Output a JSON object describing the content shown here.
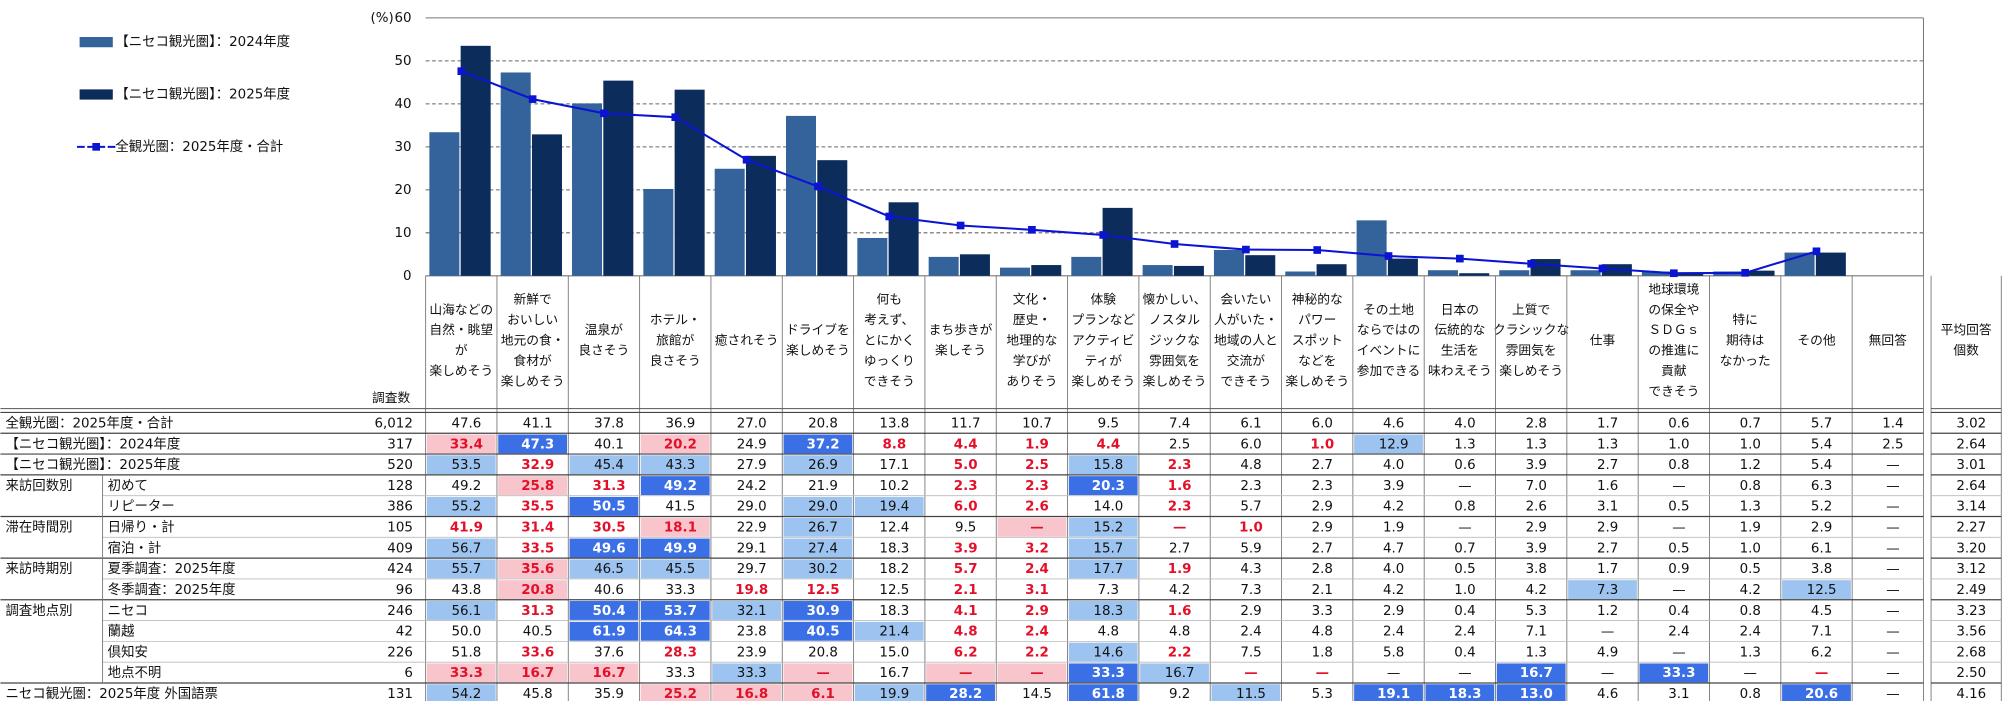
{
  "chart_data": {
    "type": "bar",
    "ylabel": "(%)",
    "ylim": [
      0,
      60
    ],
    "yticks": [
      0,
      10,
      20,
      30,
      40,
      50,
      60
    ],
    "grid": true,
    "categories": [
      [
        "山海などの",
        "自然・眺望",
        "が",
        "楽しめそう"
      ],
      [
        "新鮮で",
        "おいしい",
        "地元の食・",
        "食材が",
        "楽しめそう"
      ],
      [
        "温泉が",
        "良さそう"
      ],
      [
        "ホテル・",
        "旅館が",
        "良さそう"
      ],
      [
        "癒されそう"
      ],
      [
        "ドライブを",
        "楽しめそう"
      ],
      [
        "何も",
        "考えず、",
        "とにかく",
        "ゆっくり",
        "できそう"
      ],
      [
        "まち歩きが",
        "楽しそう"
      ],
      [
        "文化・",
        "歴史・",
        "地理的な",
        "学びが",
        "ありそう"
      ],
      [
        "体験",
        "プランなど",
        "アクティビ",
        "ティが",
        "楽しめそう"
      ],
      [
        "懐かしい、",
        "ノスタル",
        "ジックな",
        "雰囲気を",
        "楽しめそう"
      ],
      [
        "会いたい",
        "人がいた・",
        "地域の人と",
        "交流が",
        "できそう"
      ],
      [
        "神秘的な",
        "パワー",
        "スポット",
        "などを",
        "楽しめそう"
      ],
      [
        "その土地",
        "ならではの",
        "イベントに",
        "参加できる"
      ],
      [
        "日本の",
        "伝統的な",
        "生活を",
        "味わえそう"
      ],
      [
        "上質で",
        "クラシックな",
        "雰囲気を",
        "楽しめそう"
      ],
      [
        "仕事"
      ],
      [
        "地球環境",
        "の保全や",
        "ＳＤＧｓ",
        "の推進に",
        "貢献",
        "できそう"
      ],
      [
        "特に",
        "期待は",
        "なかった"
      ],
      [
        "その他"
      ]
    ],
    "series": [
      {
        "name": "【ニセコ観光圏】：2024年度",
        "color": "#33639a",
        "kind": "bar",
        "values": [
          33.4,
          47.3,
          40.1,
          20.2,
          24.9,
          37.2,
          8.8,
          4.4,
          1.9,
          4.4,
          2.5,
          6.0,
          1.0,
          12.9,
          1.3,
          1.3,
          1.3,
          1.0,
          1.0,
          5.4
        ]
      },
      {
        "name": "【ニセコ観光圏】：2025年度",
        "color": "#0c2d5c",
        "kind": "bar",
        "values": [
          53.5,
          32.9,
          45.4,
          43.3,
          27.9,
          26.9,
          17.1,
          5.0,
          2.5,
          15.8,
          2.3,
          4.8,
          2.7,
          4.0,
          0.6,
          3.9,
          2.7,
          0.8,
          1.2,
          5.4
        ]
      },
      {
        "name": "全観光圏：2025年度・合計",
        "color": "#0a14d2",
        "kind": "line",
        "values": [
          47.6,
          41.1,
          37.8,
          36.9,
          27.0,
          20.8,
          13.8,
          11.7,
          10.7,
          9.5,
          7.4,
          6.1,
          6.0,
          4.6,
          4.0,
          2.8,
          1.7,
          0.6,
          0.7,
          5.7
        ]
      }
    ]
  },
  "table": {
    "count_header": "調査数",
    "extra_columns": [
      [
        "無回答"
      ],
      [
        "平均回答",
        "個数"
      ]
    ],
    "rows": [
      {
        "label": "全観光圏：2025年度・合計",
        "n": "6,012",
        "cells": [
          "47.6",
          "41.1",
          "37.8",
          "36.9",
          "27.0",
          "20.8",
          "13.8",
          "11.7",
          "10.7",
          "9.5",
          "7.4",
          "6.1",
          "6.0",
          "4.6",
          "4.0",
          "2.8",
          "1.7",
          "0.6",
          "0.7",
          "5.7",
          "1.4",
          "3.02"
        ]
      },
      {
        "label": "【ニセコ観光圏】：2024年度",
        "n": "317",
        "cells": [
          "33.4",
          "47.3",
          "40.1",
          "20.2",
          "24.9",
          "37.2",
          "8.8",
          "4.4",
          "1.9",
          "4.4",
          "2.5",
          "6.0",
          "1.0",
          "12.9",
          "1.3",
          "1.3",
          "1.3",
          "1.0",
          "1.0",
          "5.4",
          "2.5",
          "2.64"
        ],
        "highlights": {
          "0": "low-strong",
          "1": "high-strong",
          "3": "low-strong",
          "5": "high-strong",
          "6": "low",
          "7": "low",
          "8": "low",
          "9": "low",
          "12": "low",
          "13": "high"
        }
      },
      {
        "label": "【ニセコ観光圏】：2025年度",
        "n": "520",
        "cells": [
          "53.5",
          "32.9",
          "45.4",
          "43.3",
          "27.9",
          "26.9",
          "17.1",
          "5.0",
          "2.5",
          "15.8",
          "2.3",
          "4.8",
          "2.7",
          "4.0",
          "0.6",
          "3.9",
          "2.7",
          "0.8",
          "1.2",
          "5.4",
          "—",
          "3.01"
        ],
        "highlights": {
          "0": "high",
          "1": "low",
          "2": "high",
          "3": "high",
          "5": "high",
          "7": "low",
          "8": "low",
          "9": "high",
          "10": "low"
        }
      },
      {
        "group": "来訪回数別",
        "sublabel": "初めて",
        "n": "128",
        "cells": [
          "49.2",
          "25.8",
          "31.3",
          "49.2",
          "24.2",
          "21.9",
          "10.2",
          "2.3",
          "2.3",
          "20.3",
          "1.6",
          "2.3",
          "2.3",
          "3.9",
          "—",
          "7.0",
          "1.6",
          "—",
          "0.8",
          "6.3",
          "—",
          "2.64"
        ],
        "highlights": {
          "1": "low-strong",
          "2": "low",
          "3": "high-strong",
          "7": "low",
          "8": "low",
          "9": "high-strong",
          "10": "low"
        }
      },
      {
        "sublabel": "リピーター",
        "n": "386",
        "cells": [
          "55.2",
          "35.5",
          "50.5",
          "41.5",
          "29.0",
          "29.0",
          "19.4",
          "6.0",
          "2.6",
          "14.0",
          "2.3",
          "5.7",
          "2.9",
          "4.2",
          "0.8",
          "2.6",
          "3.1",
          "0.5",
          "1.3",
          "5.2",
          "—",
          "3.14"
        ],
        "highlights": {
          "0": "high",
          "1": "low",
          "2": "high-strong",
          "5": "high",
          "6": "high",
          "7": "low",
          "8": "low",
          "10": "low"
        }
      },
      {
        "group": "滞在時間別",
        "sublabel": "日帰り・計",
        "n": "105",
        "cells": [
          "41.9",
          "31.4",
          "30.5",
          "18.1",
          "22.9",
          "26.7",
          "12.4",
          "9.5",
          "—",
          "15.2",
          "—",
          "1.0",
          "2.9",
          "1.9",
          "—",
          "2.9",
          "2.9",
          "—",
          "1.9",
          "2.9",
          "—",
          "2.27"
        ],
        "highlights": {
          "0": "low",
          "1": "low",
          "2": "low",
          "3": "low-strong",
          "5": "high",
          "8": "low-strong",
          "9": "high",
          "10": "low",
          "11": "low"
        }
      },
      {
        "sublabel": "宿泊・計",
        "n": "409",
        "cells": [
          "56.7",
          "33.5",
          "49.6",
          "49.9",
          "29.1",
          "27.4",
          "18.3",
          "3.9",
          "3.2",
          "15.7",
          "2.7",
          "5.9",
          "2.7",
          "4.7",
          "0.7",
          "3.9",
          "2.7",
          "0.5",
          "1.0",
          "6.1",
          "—",
          "3.20"
        ],
        "highlights": {
          "0": "high",
          "1": "low",
          "2": "high-strong",
          "3": "high-strong",
          "5": "high",
          "7": "low",
          "8": "low",
          "9": "high"
        }
      },
      {
        "group": "来訪時期別",
        "sublabel": "夏季調査：2025年度",
        "n": "424",
        "cells": [
          "55.7",
          "35.6",
          "46.5",
          "45.5",
          "29.7",
          "30.2",
          "18.2",
          "5.7",
          "2.4",
          "17.7",
          "1.9",
          "4.3",
          "2.8",
          "4.0",
          "0.5",
          "3.8",
          "1.7",
          "0.9",
          "0.5",
          "3.8",
          "—",
          "3.12"
        ],
        "highlights": {
          "0": "high",
          "1": "low-strong",
          "2": "high",
          "3": "high",
          "5": "high",
          "7": "low",
          "8": "low",
          "9": "high",
          "10": "low"
        }
      },
      {
        "sublabel": "冬季調査：2025年度",
        "n": "96",
        "cells": [
          "43.8",
          "20.8",
          "40.6",
          "33.3",
          "19.8",
          "12.5",
          "12.5",
          "2.1",
          "3.1",
          "7.3",
          "4.2",
          "7.3",
          "2.1",
          "4.2",
          "1.0",
          "4.2",
          "7.3",
          "—",
          "4.2",
          "12.5",
          "—",
          "2.49"
        ],
        "highlights": {
          "1": "low-strong",
          "4": "low",
          "5": "low",
          "7": "low",
          "8": "low",
          "16": "high",
          "19": "high"
        }
      },
      {
        "group": "調査地点別",
        "sublabel": "ニセコ",
        "n": "246",
        "cells": [
          "56.1",
          "31.3",
          "50.4",
          "53.7",
          "32.1",
          "30.9",
          "18.3",
          "4.1",
          "2.9",
          "18.3",
          "1.6",
          "2.9",
          "3.3",
          "2.9",
          "0.4",
          "5.3",
          "1.2",
          "0.4",
          "0.8",
          "4.5",
          "—",
          "3.23"
        ],
        "highlights": {
          "0": "high",
          "1": "low",
          "2": "high-strong",
          "3": "high-strong",
          "4": "high",
          "5": "high-strong",
          "7": "low",
          "8": "low",
          "9": "high",
          "10": "low"
        }
      },
      {
        "sublabel": "蘭越",
        "n": "42",
        "cells": [
          "50.0",
          "40.5",
          "61.9",
          "64.3",
          "23.8",
          "40.5",
          "21.4",
          "4.8",
          "2.4",
          "4.8",
          "4.8",
          "2.4",
          "4.8",
          "2.4",
          "2.4",
          "7.1",
          "—",
          "2.4",
          "2.4",
          "7.1",
          "—",
          "3.56"
        ],
        "highlights": {
          "2": "high-strong",
          "3": "high-strong",
          "5": "high-strong",
          "6": "high",
          "7": "low",
          "8": "low"
        }
      },
      {
        "sublabel": "倶知安",
        "n": "226",
        "cells": [
          "51.8",
          "33.6",
          "37.6",
          "28.3",
          "23.9",
          "20.8",
          "15.0",
          "6.2",
          "2.2",
          "14.6",
          "2.2",
          "7.5",
          "1.8",
          "5.8",
          "0.4",
          "1.3",
          "4.9",
          "—",
          "1.3",
          "6.2",
          "—",
          "2.68"
        ],
        "highlights": {
          "1": "low",
          "3": "low",
          "7": "low",
          "8": "low",
          "9": "high",
          "10": "low"
        }
      },
      {
        "sublabel": "地点不明",
        "n": "6",
        "cells": [
          "33.3",
          "16.7",
          "16.7",
          "33.3",
          "33.3",
          "—",
          "16.7",
          "—",
          "—",
          "33.3",
          "16.7",
          "—",
          "—",
          "—",
          "—",
          "16.7",
          "—",
          "33.3",
          "—",
          "—",
          "—",
          "2.50"
        ],
        "highlights": {
          "0": "low-strong",
          "1": "low-strong",
          "2": "low-strong",
          "4": "high",
          "5": "low-strong",
          "7": "low-strong",
          "8": "low-strong",
          "9": "high-strong",
          "10": "high",
          "11": "low",
          "12": "low",
          "15": "high-strong",
          "17": "high-strong",
          "19": "low"
        }
      },
      {
        "label": "ニセコ観光圏：2025年度 外国語票",
        "n": "131",
        "cells": [
          "54.2",
          "45.8",
          "35.9",
          "25.2",
          "16.8",
          "6.1",
          "19.9",
          "28.2",
          "14.5",
          "61.8",
          "9.2",
          "11.5",
          "5.3",
          "19.1",
          "18.3",
          "13.0",
          "4.6",
          "3.1",
          "0.8",
          "20.6",
          "—",
          "4.16"
        ],
        "highlights": {
          "0": "high",
          "3": "low-strong",
          "4": "low-strong",
          "5": "low-strong",
          "6": "high",
          "7": "high-strong",
          "9": "high-strong",
          "11": "high",
          "13": "high-strong",
          "14": "high-strong",
          "15": "high-strong",
          "19": "high-strong"
        }
      }
    ]
  }
}
